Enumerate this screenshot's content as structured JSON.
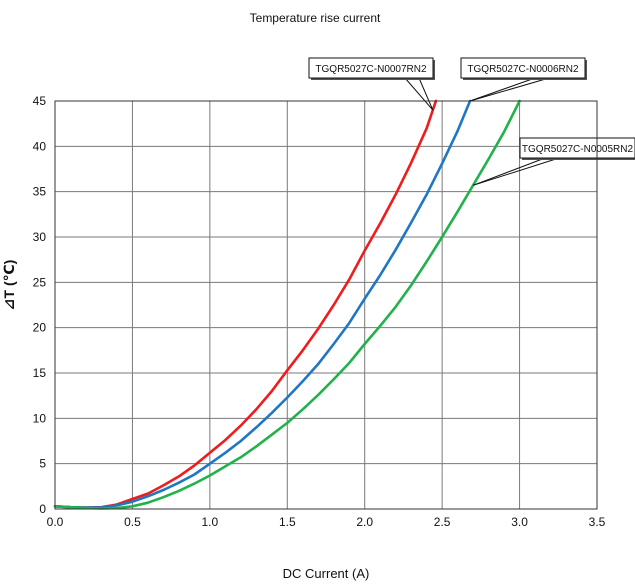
{
  "chart_data": {
    "type": "line",
    "title": "Temperature rise  current",
    "xlabel": "DC Current (A)",
    "ylabel": "⊿T (℃)",
    "xlim": [
      0.0,
      3.5
    ],
    "ylim": [
      0,
      45
    ],
    "x_ticks": [
      "0.0",
      "0.5",
      "1.0",
      "1.5",
      "2.0",
      "2.5",
      "3.0",
      "3.5"
    ],
    "y_ticks": [
      "0",
      "5",
      "10",
      "15",
      "20",
      "25",
      "30",
      "35",
      "40",
      "45"
    ],
    "grid": true,
    "series": [
      {
        "name": "TGQR5027C-N0007RN2",
        "color": "#ee1c1c",
        "x": [
          0.0,
          0.1,
          0.2,
          0.3,
          0.4,
          0.5,
          0.6,
          0.7,
          0.8,
          0.9,
          1.0,
          1.1,
          1.2,
          1.3,
          1.4,
          1.5,
          1.6,
          1.7,
          1.8,
          1.9,
          2.0,
          2.1,
          2.2,
          2.3,
          2.4,
          2.46
        ],
        "y": [
          0.3,
          0.2,
          0.15,
          0.2,
          0.5,
          1.1,
          1.7,
          2.6,
          3.6,
          4.8,
          6.2,
          7.6,
          9.2,
          11.0,
          13.0,
          15.3,
          17.5,
          19.9,
          22.5,
          25.3,
          28.5,
          31.5,
          34.7,
          38.2,
          42.0,
          45.0
        ]
      },
      {
        "name": "TGQR5027C-N0006RN2",
        "color": "#1f77c4",
        "x": [
          0.0,
          0.1,
          0.2,
          0.3,
          0.4,
          0.5,
          0.6,
          0.7,
          0.8,
          0.9,
          1.0,
          1.1,
          1.2,
          1.3,
          1.4,
          1.5,
          1.6,
          1.7,
          1.8,
          1.9,
          2.0,
          2.1,
          2.2,
          2.3,
          2.4,
          2.5,
          2.6,
          2.68
        ],
        "y": [
          0.3,
          0.2,
          0.15,
          0.15,
          0.4,
          0.8,
          1.4,
          2.1,
          2.9,
          3.8,
          5.0,
          6.2,
          7.5,
          9.0,
          10.6,
          12.3,
          14.1,
          16.0,
          18.2,
          20.5,
          23.2,
          25.8,
          28.6,
          31.6,
          34.7,
          38.1,
          41.7,
          45.0
        ]
      },
      {
        "name": "TGQR5027C-N0005RN2",
        "color": "#22b14c",
        "x": [
          0.0,
          0.1,
          0.2,
          0.3,
          0.4,
          0.5,
          0.6,
          0.7,
          0.8,
          0.9,
          1.0,
          1.1,
          1.2,
          1.3,
          1.4,
          1.5,
          1.6,
          1.7,
          1.8,
          1.9,
          2.0,
          2.1,
          2.2,
          2.3,
          2.4,
          2.5,
          2.6,
          2.7,
          2.8,
          2.9,
          3.0
        ],
        "y": [
          0.3,
          0.2,
          0.1,
          0.05,
          0.1,
          0.3,
          0.7,
          1.3,
          2.0,
          2.8,
          3.7,
          4.7,
          5.7,
          6.9,
          8.2,
          9.5,
          11.0,
          12.6,
          14.3,
          16.1,
          18.2,
          20.2,
          22.3,
          24.7,
          27.3,
          30.0,
          32.8,
          35.7,
          38.6,
          41.6,
          45.0
        ]
      }
    ],
    "annotations": [
      {
        "text": "TGQR5027C-N0007RN2",
        "series": 0,
        "at_x": 2.44
      },
      {
        "text": "TGQR5027C-N0006RN2",
        "series": 1,
        "at_x": 2.68
      },
      {
        "text": "TGQR5027C-N0005RN2",
        "series": 2,
        "at_x": 2.7
      }
    ]
  }
}
